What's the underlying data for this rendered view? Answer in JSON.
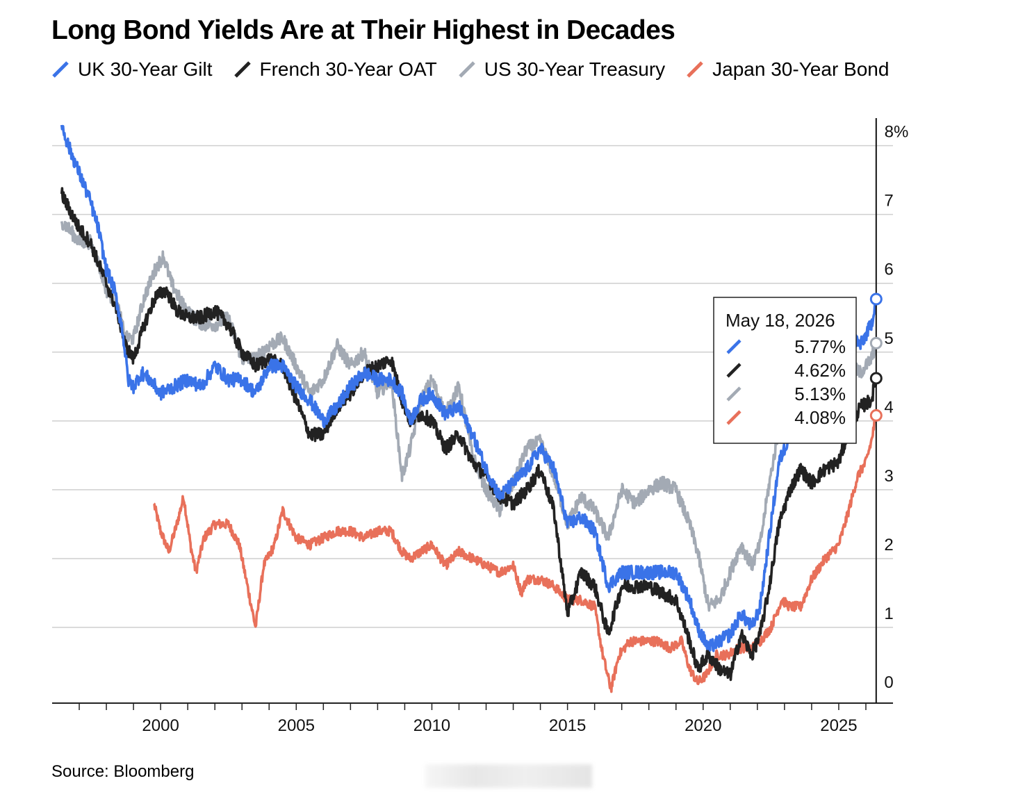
{
  "chart_data": {
    "type": "line",
    "title": "Long Bond Yields Are at Their Highest in Decades",
    "source": "Source: Bloomberg",
    "xlim": [
      1996.0,
      2027.0
    ],
    "ylim": [
      -0.1,
      8.4
    ],
    "y_ticks": [
      0,
      1,
      2,
      3,
      4,
      5,
      6,
      7,
      8
    ],
    "y_tick_labels": [
      "0",
      "1",
      "2",
      "3",
      "4",
      "5",
      "6",
      "7",
      "8%"
    ],
    "x_ticks": [
      2000,
      2005,
      2010,
      2015,
      2020,
      2025
    ],
    "x_tick_labels": [
      "2000",
      "2005",
      "2010",
      "2015",
      "2020",
      "2025"
    ],
    "grid": "horizontal",
    "legend_position": "top",
    "tooltip": {
      "date": "May 18, 2026",
      "values": [
        "5.77%",
        "4.62%",
        "5.13%",
        "4.08%"
      ]
    },
    "series": [
      {
        "name": "UK 30-Year Gilt",
        "color": "#3a73e8",
        "last_value": 5.77,
        "points": [
          [
            1996.35,
            8.3
          ],
          [
            1996.6,
            8.0
          ],
          [
            1997.0,
            7.6
          ],
          [
            1997.4,
            7.2
          ],
          [
            1997.7,
            6.8
          ],
          [
            1998.0,
            6.2
          ],
          [
            1998.3,
            5.9
          ],
          [
            1998.6,
            5.3
          ],
          [
            1998.8,
            4.6
          ],
          [
            1999.0,
            4.5
          ],
          [
            1999.3,
            4.7
          ],
          [
            1999.6,
            4.6
          ],
          [
            2000.0,
            4.4
          ],
          [
            2000.5,
            4.5
          ],
          [
            2001.0,
            4.6
          ],
          [
            2001.5,
            4.5
          ],
          [
            2002.0,
            4.8
          ],
          [
            2002.5,
            4.6
          ],
          [
            2003.0,
            4.6
          ],
          [
            2003.5,
            4.4
          ],
          [
            2004.0,
            4.8
          ],
          [
            2004.5,
            4.8
          ],
          [
            2005.0,
            4.5
          ],
          [
            2005.5,
            4.3
          ],
          [
            2006.0,
            4.0
          ],
          [
            2006.5,
            4.2
          ],
          [
            2007.0,
            4.5
          ],
          [
            2007.5,
            4.7
          ],
          [
            2008.0,
            4.6
          ],
          [
            2008.5,
            4.6
          ],
          [
            2008.9,
            4.4
          ],
          [
            2009.2,
            4.0
          ],
          [
            2009.6,
            4.3
          ],
          [
            2010.0,
            4.4
          ],
          [
            2010.5,
            4.1
          ],
          [
            2011.0,
            4.2
          ],
          [
            2011.5,
            3.8
          ],
          [
            2012.0,
            3.3
          ],
          [
            2012.5,
            2.9
          ],
          [
            2013.0,
            3.1
          ],
          [
            2013.5,
            3.3
          ],
          [
            2014.0,
            3.6
          ],
          [
            2014.5,
            3.3
          ],
          [
            2015.0,
            2.5
          ],
          [
            2015.5,
            2.6
          ],
          [
            2016.0,
            2.4
          ],
          [
            2016.5,
            1.6
          ],
          [
            2017.0,
            1.8
          ],
          [
            2017.5,
            1.8
          ],
          [
            2018.0,
            1.8
          ],
          [
            2018.5,
            1.8
          ],
          [
            2019.0,
            1.8
          ],
          [
            2019.5,
            1.4
          ],
          [
            2019.8,
            1.0
          ],
          [
            2020.2,
            0.7
          ],
          [
            2020.6,
            0.8
          ],
          [
            2021.0,
            0.9
          ],
          [
            2021.4,
            1.2
          ],
          [
            2021.8,
            1.0
          ],
          [
            2022.1,
            1.3
          ],
          [
            2022.4,
            2.2
          ],
          [
            2022.8,
            3.4
          ],
          [
            2023.2,
            3.8
          ],
          [
            2023.6,
            4.3
          ],
          [
            2024.0,
            4.4
          ],
          [
            2024.5,
            4.6
          ],
          [
            2025.0,
            4.9
          ],
          [
            2025.4,
            5.3
          ],
          [
            2025.8,
            5.1
          ],
          [
            2026.2,
            5.4
          ],
          [
            2026.38,
            5.77
          ]
        ]
      },
      {
        "name": "French 30-Year OAT",
        "color": "#222222",
        "last_value": 4.62,
        "points": [
          [
            1996.35,
            7.3
          ],
          [
            1996.6,
            7.1
          ],
          [
            1997.0,
            6.8
          ],
          [
            1997.4,
            6.6
          ],
          [
            1997.7,
            6.3
          ],
          [
            1998.0,
            6.0
          ],
          [
            1998.4,
            5.6
          ],
          [
            1998.7,
            5.1
          ],
          [
            1999.0,
            4.9
          ],
          [
            1999.4,
            5.4
          ],
          [
            1999.8,
            5.8
          ],
          [
            2000.2,
            5.9
          ],
          [
            2000.6,
            5.6
          ],
          [
            2001.0,
            5.5
          ],
          [
            2001.5,
            5.5
          ],
          [
            2002.0,
            5.6
          ],
          [
            2002.5,
            5.4
          ],
          [
            2003.0,
            5.0
          ],
          [
            2003.5,
            4.8
          ],
          [
            2004.0,
            4.9
          ],
          [
            2004.5,
            4.8
          ],
          [
            2005.0,
            4.3
          ],
          [
            2005.5,
            3.8
          ],
          [
            2006.0,
            3.8
          ],
          [
            2006.5,
            4.2
          ],
          [
            2007.0,
            4.4
          ],
          [
            2007.5,
            4.7
          ],
          [
            2008.0,
            4.8
          ],
          [
            2008.5,
            4.9
          ],
          [
            2008.9,
            4.3
          ],
          [
            2009.2,
            4.0
          ],
          [
            2009.6,
            4.1
          ],
          [
            2010.0,
            4.0
          ],
          [
            2010.5,
            3.6
          ],
          [
            2011.0,
            3.8
          ],
          [
            2011.5,
            3.4
          ],
          [
            2012.0,
            3.2
          ],
          [
            2012.5,
            2.9
          ],
          [
            2013.0,
            2.8
          ],
          [
            2013.5,
            3.0
          ],
          [
            2014.0,
            3.3
          ],
          [
            2014.5,
            2.7
          ],
          [
            2015.0,
            1.2
          ],
          [
            2015.5,
            1.8
          ],
          [
            2016.0,
            1.6
          ],
          [
            2016.5,
            0.9
          ],
          [
            2017.0,
            1.6
          ],
          [
            2017.5,
            1.6
          ],
          [
            2018.0,
            1.6
          ],
          [
            2018.5,
            1.5
          ],
          [
            2019.0,
            1.4
          ],
          [
            2019.5,
            0.8
          ],
          [
            2019.8,
            0.4
          ],
          [
            2020.2,
            0.6
          ],
          [
            2020.6,
            0.4
          ],
          [
            2021.0,
            0.3
          ],
          [
            2021.4,
            0.9
          ],
          [
            2021.8,
            0.6
          ],
          [
            2022.1,
            0.9
          ],
          [
            2022.4,
            1.5
          ],
          [
            2022.8,
            2.5
          ],
          [
            2023.2,
            3.0
          ],
          [
            2023.6,
            3.3
          ],
          [
            2024.0,
            3.1
          ],
          [
            2024.5,
            3.3
          ],
          [
            2025.0,
            3.4
          ],
          [
            2025.4,
            3.9
          ],
          [
            2025.8,
            4.2
          ],
          [
            2026.2,
            4.3
          ],
          [
            2026.38,
            4.62
          ]
        ]
      },
      {
        "name": "US 30-Year Treasury",
        "color": "#a3aab4",
        "last_value": 5.13,
        "points": [
          [
            1996.35,
            6.9
          ],
          [
            1996.6,
            6.8
          ],
          [
            1997.0,
            6.6
          ],
          [
            1997.4,
            6.6
          ],
          [
            1997.7,
            6.3
          ],
          [
            1998.0,
            5.9
          ],
          [
            1998.4,
            5.7
          ],
          [
            1998.7,
            5.2
          ],
          [
            1999.0,
            5.2
          ],
          [
            1999.4,
            5.8
          ],
          [
            1999.8,
            6.2
          ],
          [
            2000.1,
            6.4
          ],
          [
            2000.4,
            6.0
          ],
          [
            2000.8,
            5.7
          ],
          [
            2001.2,
            5.5
          ],
          [
            2001.6,
            5.4
          ],
          [
            2002.0,
            5.4
          ],
          [
            2002.5,
            5.5
          ],
          [
            2003.0,
            4.9
          ],
          [
            2003.5,
            4.9
          ],
          [
            2004.0,
            5.1
          ],
          [
            2004.5,
            5.2
          ],
          [
            2005.0,
            4.8
          ],
          [
            2005.5,
            4.4
          ],
          [
            2006.0,
            4.6
          ],
          [
            2006.5,
            5.1
          ],
          [
            2007.0,
            4.8
          ],
          [
            2007.5,
            5.0
          ],
          [
            2008.0,
            4.4
          ],
          [
            2008.5,
            4.6
          ],
          [
            2008.9,
            3.2
          ],
          [
            2009.2,
            3.6
          ],
          [
            2009.6,
            4.3
          ],
          [
            2010.0,
            4.6
          ],
          [
            2010.5,
            4.1
          ],
          [
            2011.0,
            4.5
          ],
          [
            2011.5,
            3.5
          ],
          [
            2012.0,
            3.0
          ],
          [
            2012.5,
            2.7
          ],
          [
            2013.0,
            3.1
          ],
          [
            2013.5,
            3.6
          ],
          [
            2014.0,
            3.7
          ],
          [
            2014.5,
            3.2
          ],
          [
            2015.0,
            2.5
          ],
          [
            2015.5,
            2.9
          ],
          [
            2016.0,
            2.7
          ],
          [
            2016.5,
            2.3
          ],
          [
            2017.0,
            3.0
          ],
          [
            2017.5,
            2.8
          ],
          [
            2018.0,
            3.0
          ],
          [
            2018.5,
            3.1
          ],
          [
            2019.0,
            3.0
          ],
          [
            2019.5,
            2.5
          ],
          [
            2019.8,
            2.1
          ],
          [
            2020.2,
            1.3
          ],
          [
            2020.6,
            1.4
          ],
          [
            2021.0,
            1.8
          ],
          [
            2021.4,
            2.2
          ],
          [
            2021.8,
            1.9
          ],
          [
            2022.1,
            2.2
          ],
          [
            2022.4,
            3.0
          ],
          [
            2022.8,
            3.9
          ],
          [
            2023.2,
            3.8
          ],
          [
            2023.6,
            4.4
          ],
          [
            2024.0,
            4.3
          ],
          [
            2024.5,
            4.4
          ],
          [
            2025.0,
            4.7
          ],
          [
            2025.4,
            4.8
          ],
          [
            2025.8,
            4.7
          ],
          [
            2026.2,
            4.9
          ],
          [
            2026.38,
            5.13
          ]
        ]
      },
      {
        "name": "Japan 30-Year Bond",
        "color": "#e8705a",
        "last_value": 4.08,
        "points": [
          [
            1999.75,
            2.8
          ],
          [
            2000.0,
            2.4
          ],
          [
            2000.3,
            2.1
          ],
          [
            2000.6,
            2.5
          ],
          [
            2000.85,
            2.9
          ],
          [
            2001.1,
            2.2
          ],
          [
            2001.3,
            1.8
          ],
          [
            2001.6,
            2.3
          ],
          [
            2002.0,
            2.5
          ],
          [
            2002.5,
            2.5
          ],
          [
            2002.9,
            2.2
          ],
          [
            2003.2,
            1.6
          ],
          [
            2003.5,
            1.0
          ],
          [
            2003.8,
            1.9
          ],
          [
            2004.2,
            2.2
          ],
          [
            2004.5,
            2.7
          ],
          [
            2005.0,
            2.3
          ],
          [
            2005.5,
            2.2
          ],
          [
            2006.0,
            2.3
          ],
          [
            2006.5,
            2.4
          ],
          [
            2007.0,
            2.4
          ],
          [
            2007.5,
            2.3
          ],
          [
            2008.0,
            2.4
          ],
          [
            2008.5,
            2.4
          ],
          [
            2008.9,
            2.1
          ],
          [
            2009.2,
            2.0
          ],
          [
            2009.6,
            2.1
          ],
          [
            2010.0,
            2.2
          ],
          [
            2010.5,
            1.9
          ],
          [
            2011.0,
            2.1
          ],
          [
            2011.5,
            2.0
          ],
          [
            2012.0,
            1.9
          ],
          [
            2012.5,
            1.8
          ],
          [
            2013.0,
            1.9
          ],
          [
            2013.3,
            1.5
          ],
          [
            2013.5,
            1.7
          ],
          [
            2014.0,
            1.7
          ],
          [
            2014.5,
            1.6
          ],
          [
            2015.0,
            1.4
          ],
          [
            2015.5,
            1.4
          ],
          [
            2016.0,
            1.3
          ],
          [
            2016.3,
            0.6
          ],
          [
            2016.6,
            0.1
          ],
          [
            2016.9,
            0.6
          ],
          [
            2017.3,
            0.8
          ],
          [
            2017.8,
            0.8
          ],
          [
            2018.3,
            0.8
          ],
          [
            2018.8,
            0.7
          ],
          [
            2019.2,
            0.8
          ],
          [
            2019.5,
            0.4
          ],
          [
            2019.8,
            0.2
          ],
          [
            2020.1,
            0.3
          ],
          [
            2020.5,
            0.6
          ],
          [
            2020.9,
            0.6
          ],
          [
            2021.3,
            0.7
          ],
          [
            2021.8,
            0.7
          ],
          [
            2022.1,
            0.8
          ],
          [
            2022.5,
            1.0
          ],
          [
            2022.9,
            1.4
          ],
          [
            2023.2,
            1.3
          ],
          [
            2023.6,
            1.3
          ],
          [
            2024.0,
            1.7
          ],
          [
            2024.5,
            2.0
          ],
          [
            2025.0,
            2.2
          ],
          [
            2025.3,
            2.6
          ],
          [
            2025.7,
            3.2
          ],
          [
            2026.0,
            3.4
          ],
          [
            2026.2,
            3.7
          ],
          [
            2026.38,
            4.08
          ]
        ]
      }
    ]
  }
}
